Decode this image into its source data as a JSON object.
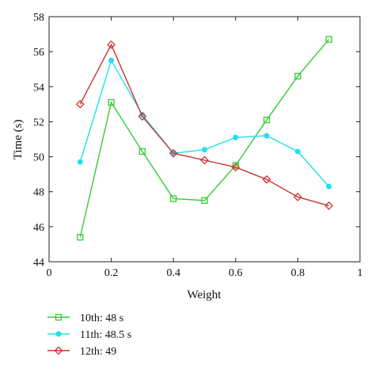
{
  "chart_data": {
    "type": "line",
    "xlabel": "Weight",
    "ylabel": "Time (s)",
    "xlim": [
      0,
      1
    ],
    "ylim": [
      44,
      58
    ],
    "x_ticks": [
      "0",
      "0.2",
      "0.4",
      "0.6",
      "0.8",
      "1"
    ],
    "x_tick_values": [
      0,
      0.2,
      0.4,
      0.6,
      0.8,
      1
    ],
    "y_ticks": [
      "44",
      "46",
      "48",
      "50",
      "52",
      "54",
      "56",
      "58"
    ],
    "y_tick_values": [
      44,
      46,
      48,
      50,
      52,
      54,
      56,
      58
    ],
    "grid": false,
    "legend_position": "bottom-left, below plot",
    "x": [
      0.1,
      0.2,
      0.3,
      0.4,
      0.5,
      0.6,
      0.7,
      0.8,
      0.9
    ],
    "series": [
      {
        "name": "10th: 48 s",
        "color": "#33cc33",
        "marker": "square",
        "values": [
          45.4,
          53.1,
          50.3,
          47.6,
          47.5,
          49.5,
          52.1,
          54.6,
          56.7
        ]
      },
      {
        "name": "11th: 48.5 s",
        "color": "#22e0ee",
        "marker": "dot",
        "values": [
          49.7,
          55.5,
          52.4,
          50.2,
          50.4,
          51.1,
          51.2,
          50.3,
          48.3
        ]
      },
      {
        "name": "12th: 49",
        "color": "#cc3333",
        "marker": "diamond",
        "values": [
          53.0,
          56.4,
          52.3,
          50.2,
          49.8,
          49.4,
          48.7,
          47.7,
          47.2
        ]
      }
    ]
  }
}
